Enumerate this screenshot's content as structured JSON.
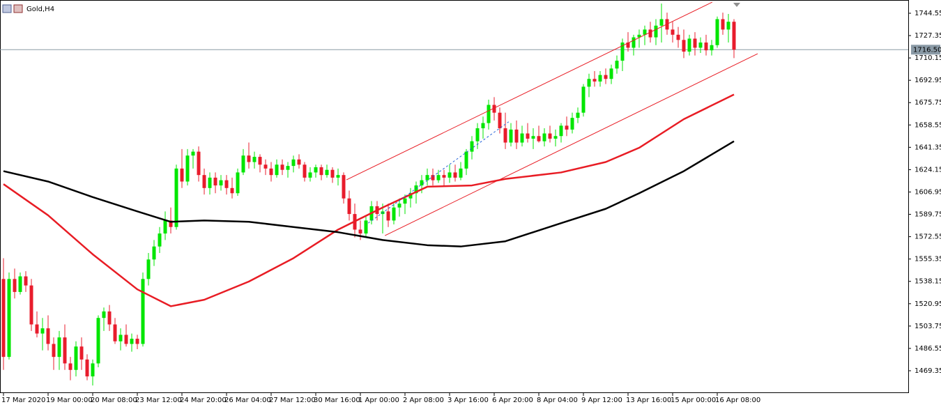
{
  "chart_data": {
    "type": "candlestick",
    "title": "Gold,H4",
    "up_color": "#00e600",
    "down_color": "#e81c2c",
    "ylim": [
      1452.17,
      1754.74
    ],
    "yticks": [
      1744.55,
      1727.35,
      1710.15,
      1692.95,
      1675.75,
      1658.55,
      1641.35,
      1624.15,
      1606.95,
      1589.75,
      1572.55,
      1555.35,
      1538.15,
      1520.95,
      1503.75,
      1486.55,
      1469.35
    ],
    "current_price": {
      "value": 1716.5,
      "label": "1716.50"
    },
    "categories": [
      "17 Mar 2020",
      null,
      null,
      null,
      null,
      null,
      null,
      null,
      "19 Mar 00:00",
      null,
      null,
      null,
      null,
      null,
      null,
      null,
      "20 Mar 08:00",
      null,
      null,
      null,
      null,
      null,
      null,
      null,
      "23 Mar 12:00",
      null,
      null,
      null,
      null,
      null,
      null,
      null,
      "24 Mar 20:00",
      null,
      null,
      null,
      null,
      null,
      null,
      null,
      "26 Mar 04:00",
      null,
      null,
      null,
      null,
      null,
      null,
      null,
      "27 Mar 12:00",
      null,
      null,
      null,
      null,
      null,
      null,
      null,
      "30 Mar 16:00",
      null,
      null,
      null,
      null,
      null,
      null,
      null,
      "1 Apr 00:00",
      null,
      null,
      null,
      null,
      null,
      null,
      null,
      "2 Apr 08:00",
      null,
      null,
      null,
      null,
      null,
      null,
      null,
      "3 Apr 16:00",
      null,
      null,
      null,
      null,
      null,
      null,
      null,
      "6 Apr 20:00",
      null,
      null,
      null,
      null,
      null,
      null,
      null,
      "8 Apr 04:00",
      null,
      null,
      null,
      null,
      null,
      null,
      null,
      "9 Apr 12:00",
      null,
      null,
      null,
      null,
      null,
      null,
      null,
      "13 Apr 16:00",
      null,
      null,
      null,
      null,
      null,
      null,
      null,
      "15 Apr 00:00",
      null,
      null,
      null,
      null,
      null,
      null,
      null,
      "16 Apr 08:00",
      null,
      null,
      null
    ],
    "candles": [
      [
        1540,
        1556,
        1470,
        1480
      ],
      [
        1480,
        1545,
        1478,
        1540
      ],
      [
        1540,
        1548,
        1525,
        1530
      ],
      [
        1530,
        1545,
        1528,
        1542
      ],
      [
        1542,
        1546,
        1530,
        1535
      ],
      [
        1535,
        1540,
        1500,
        1505
      ],
      [
        1505,
        1515,
        1495,
        1498
      ],
      [
        1498,
        1510,
        1485,
        1502
      ],
      [
        1502,
        1512,
        1485,
        1490
      ],
      [
        1490,
        1495,
        1470,
        1480
      ],
      [
        1480,
        1500,
        1470,
        1495
      ],
      [
        1495,
        1505,
        1470,
        1475
      ],
      [
        1475,
        1480,
        1462,
        1470
      ],
      [
        1470,
        1492,
        1465,
        1488
      ],
      [
        1488,
        1495,
        1470,
        1478
      ],
      [
        1478,
        1482,
        1462,
        1465
      ],
      [
        1465,
        1478,
        1458,
        1475
      ],
      [
        1475,
        1512,
        1472,
        1510
      ],
      [
        1510,
        1518,
        1500,
        1515
      ],
      [
        1515,
        1520,
        1500,
        1505
      ],
      [
        1505,
        1510,
        1490,
        1492
      ],
      [
        1492,
        1502,
        1485,
        1497
      ],
      [
        1497,
        1505,
        1488,
        1490
      ],
      [
        1490,
        1498,
        1484,
        1494
      ],
      [
        1494,
        1497,
        1486,
        1490
      ],
      [
        1490,
        1545,
        1488,
        1540
      ],
      [
        1540,
        1560,
        1535,
        1555
      ],
      [
        1555,
        1570,
        1550,
        1565
      ],
      [
        1565,
        1580,
        1560,
        1575
      ],
      [
        1575,
        1592,
        1570,
        1585
      ],
      [
        1585,
        1595,
        1575,
        1580
      ],
      [
        1580,
        1628,
        1578,
        1625
      ],
      [
        1625,
        1640,
        1610,
        1615
      ],
      [
        1615,
        1640,
        1612,
        1635
      ],
      [
        1635,
        1640,
        1625,
        1638
      ],
      [
        1638,
        1642,
        1615,
        1620
      ],
      [
        1620,
        1625,
        1605,
        1610
      ],
      [
        1610,
        1622,
        1605,
        1618
      ],
      [
        1618,
        1622,
        1606,
        1612
      ],
      [
        1612,
        1620,
        1608,
        1616
      ],
      [
        1616,
        1620,
        1605,
        1610
      ],
      [
        1610,
        1618,
        1602,
        1606
      ],
      [
        1606,
        1625,
        1604,
        1622
      ],
      [
        1622,
        1640,
        1620,
        1635
      ],
      [
        1635,
        1645,
        1625,
        1630
      ],
      [
        1630,
        1638,
        1625,
        1634
      ],
      [
        1634,
        1636,
        1622,
        1628
      ],
      [
        1628,
        1632,
        1620,
        1625
      ],
      [
        1625,
        1630,
        1615,
        1620
      ],
      [
        1620,
        1632,
        1618,
        1628
      ],
      [
        1628,
        1632,
        1620,
        1624
      ],
      [
        1624,
        1630,
        1618,
        1627
      ],
      [
        1627,
        1635,
        1622,
        1632
      ],
      [
        1632,
        1636,
        1625,
        1628
      ],
      [
        1628,
        1630,
        1615,
        1618
      ],
      [
        1618,
        1626,
        1615,
        1622
      ],
      [
        1622,
        1628,
        1618,
        1626
      ],
      [
        1626,
        1628,
        1616,
        1620
      ],
      [
        1620,
        1628,
        1618,
        1624
      ],
      [
        1624,
        1626,
        1614,
        1618
      ],
      [
        1618,
        1625,
        1612,
        1620
      ],
      [
        1620,
        1622,
        1598,
        1602
      ],
      [
        1602,
        1608,
        1585,
        1590
      ],
      [
        1590,
        1598,
        1572,
        1578
      ],
      [
        1578,
        1585,
        1570,
        1575
      ],
      [
        1575,
        1588,
        1572,
        1585
      ],
      [
        1585,
        1600,
        1582,
        1596
      ],
      [
        1596,
        1600,
        1585,
        1590
      ],
      [
        1590,
        1598,
        1575,
        1592
      ],
      [
        1592,
        1598,
        1580,
        1585
      ],
      [
        1585,
        1598,
        1582,
        1595
      ],
      [
        1595,
        1602,
        1588,
        1598
      ],
      [
        1598,
        1605,
        1590,
        1602
      ],
      [
        1602,
        1610,
        1595,
        1606
      ],
      [
        1606,
        1615,
        1598,
        1612
      ],
      [
        1612,
        1620,
        1606,
        1616
      ],
      [
        1616,
        1625,
        1612,
        1620
      ],
      [
        1620,
        1625,
        1612,
        1616
      ],
      [
        1616,
        1624,
        1614,
        1620
      ],
      [
        1620,
        1624,
        1612,
        1618
      ],
      [
        1618,
        1628,
        1614,
        1622
      ],
      [
        1622,
        1628,
        1615,
        1618
      ],
      [
        1618,
        1630,
        1616,
        1625
      ],
      [
        1625,
        1640,
        1620,
        1638
      ],
      [
        1638,
        1650,
        1632,
        1646
      ],
      [
        1646,
        1660,
        1640,
        1656
      ],
      [
        1656,
        1665,
        1648,
        1660
      ],
      [
        1660,
        1678,
        1655,
        1674
      ],
      [
        1674,
        1680,
        1662,
        1668
      ],
      [
        1668,
        1672,
        1652,
        1656
      ],
      [
        1656,
        1668,
        1640,
        1645
      ],
      [
        1645,
        1660,
        1642,
        1655
      ],
      [
        1655,
        1662,
        1640,
        1645
      ],
      [
        1645,
        1658,
        1642,
        1652
      ],
      [
        1652,
        1660,
        1645,
        1648
      ],
      [
        1648,
        1656,
        1640,
        1650
      ],
      [
        1650,
        1658,
        1645,
        1646
      ],
      [
        1646,
        1656,
        1642,
        1652
      ],
      [
        1652,
        1658,
        1645,
        1648
      ],
      [
        1648,
        1655,
        1642,
        1650
      ],
      [
        1650,
        1660,
        1645,
        1658
      ],
      [
        1658,
        1665,
        1650,
        1655
      ],
      [
        1655,
        1668,
        1652,
        1664
      ],
      [
        1664,
        1672,
        1660,
        1668
      ],
      [
        1668,
        1690,
        1665,
        1688
      ],
      [
        1688,
        1698,
        1680,
        1694
      ],
      [
        1694,
        1700,
        1688,
        1692
      ],
      [
        1692,
        1700,
        1688,
        1697
      ],
      [
        1697,
        1702,
        1690,
        1694
      ],
      [
        1694,
        1705,
        1690,
        1702
      ],
      [
        1702,
        1712,
        1698,
        1708
      ],
      [
        1708,
        1725,
        1700,
        1722
      ],
      [
        1722,
        1730,
        1715,
        1718
      ],
      [
        1718,
        1728,
        1712,
        1726
      ],
      [
        1726,
        1732,
        1718,
        1728
      ],
      [
        1728,
        1735,
        1720,
        1732
      ],
      [
        1732,
        1738,
        1722,
        1726
      ],
      [
        1726,
        1740,
        1720,
        1735
      ],
      [
        1735,
        1752,
        1722,
        1740
      ],
      [
        1740,
        1745,
        1728,
        1732
      ],
      [
        1732,
        1738,
        1722,
        1728
      ],
      [
        1728,
        1734,
        1718,
        1724
      ],
      [
        1724,
        1732,
        1710,
        1715
      ],
      [
        1715,
        1728,
        1712,
        1725
      ],
      [
        1725,
        1730,
        1712,
        1718
      ],
      [
        1718,
        1726,
        1714,
        1722
      ],
      [
        1722,
        1728,
        1712,
        1716
      ],
      [
        1716,
        1724,
        1712,
        1720
      ],
      [
        1720,
        1742,
        1718,
        1740
      ],
      [
        1740,
        1745,
        1728,
        1732
      ],
      [
        1732,
        1744,
        1722,
        1738
      ],
      [
        1738,
        1740,
        1710,
        1716.5
      ]
    ],
    "lines": [
      {
        "color": "#e81c24",
        "width": 2.5,
        "x": [
          0,
          8,
          16,
          24,
          30,
          36,
          44,
          52,
          60,
          68,
          76,
          84,
          90,
          100,
          108,
          114,
          122,
          131
        ],
        "values": [
          1613,
          1589,
          1559,
          1532,
          1519,
          1524,
          1538,
          1556,
          1578,
          1595,
          1611,
          1612,
          1617,
          1622,
          1630,
          1641,
          1663,
          1682
        ]
      },
      {
        "color": "#000000",
        "width": 2.5,
        "x": [
          0,
          8,
          16,
          24,
          30,
          36,
          44,
          52,
          60,
          68,
          76,
          82,
          90,
          100,
          108,
          114,
          122,
          131
        ],
        "values": [
          1623,
          1615,
          1603,
          1592,
          1584,
          1585,
          1584,
          1580,
          1576,
          1570,
          1566,
          1565,
          1569,
          1583,
          1594,
          1606,
          1623,
          1646
        ]
      },
      {
        "color": "#e81c24",
        "width": 1,
        "x": [
          61.5,
          127.1
        ],
        "values": [
          1616.3,
          1753.1
        ]
      },
      {
        "color": "#e81c24",
        "width": 1,
        "x": [
          68.4,
          135.25
        ],
        "values": [
          1573.4,
          1713.4
        ]
      },
      {
        "color": "#1e5fd8",
        "width": 1,
        "dash": "3,3",
        "x": [
          65.4,
          90.6
        ],
        "values": [
          1583,
          1661
        ]
      }
    ]
  }
}
